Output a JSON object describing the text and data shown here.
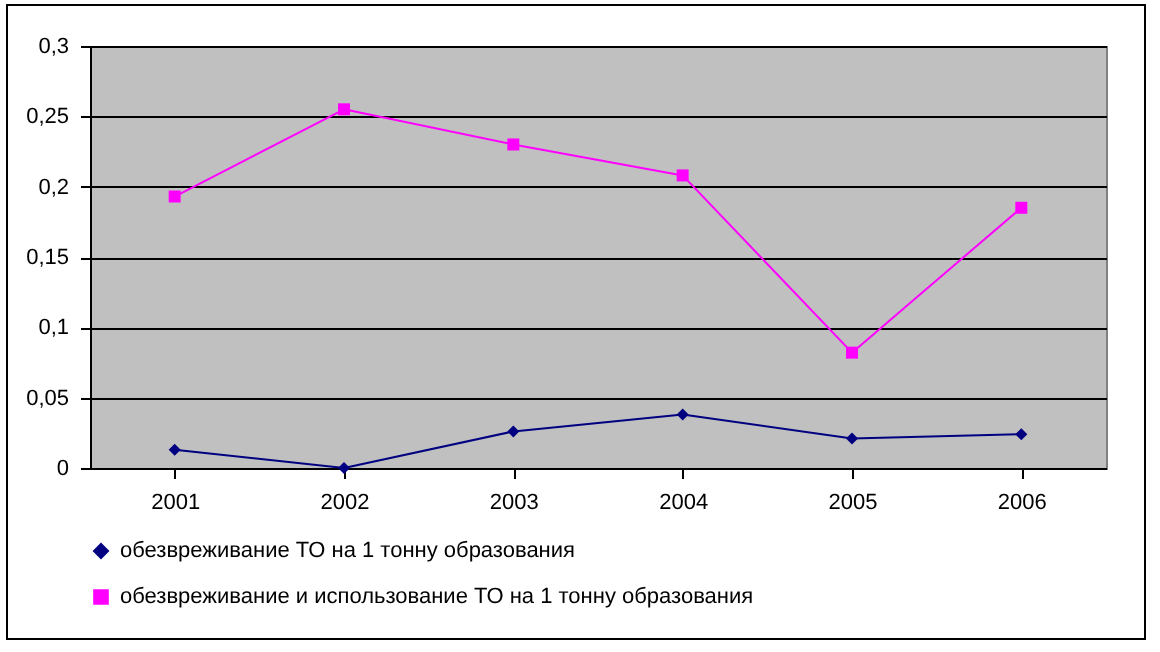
{
  "chart_data": {
    "type": "line",
    "categories": [
      "2001",
      "2002",
      "2003",
      "2004",
      "2005",
      "2006"
    ],
    "series": [
      {
        "name": "обезвреживание ТО на 1 тонну образования",
        "color": "#000080",
        "marker": "diamond",
        "values": [
          0.013,
          0.0,
          0.026,
          0.038,
          0.021,
          0.024
        ]
      },
      {
        "name": "обезвреживание и использование ТО на 1 тонну образования",
        "color": "#ff00ff",
        "marker": "square",
        "values": [
          0.193,
          0.255,
          0.23,
          0.208,
          0.082,
          0.185
        ]
      }
    ],
    "ylim": [
      0,
      0.3
    ],
    "yticks": [
      {
        "value": 0,
        "label": "0"
      },
      {
        "value": 0.05,
        "label": "0,05"
      },
      {
        "value": 0.1,
        "label": "0,1"
      },
      {
        "value": 0.15,
        "label": "0,15"
      },
      {
        "value": 0.2,
        "label": "0,2"
      },
      {
        "value": 0.25,
        "label": "0,25"
      },
      {
        "value": 0.3,
        "label": "0,3"
      }
    ],
    "grid": "y",
    "legend": "bottom",
    "line_style": "solid"
  }
}
